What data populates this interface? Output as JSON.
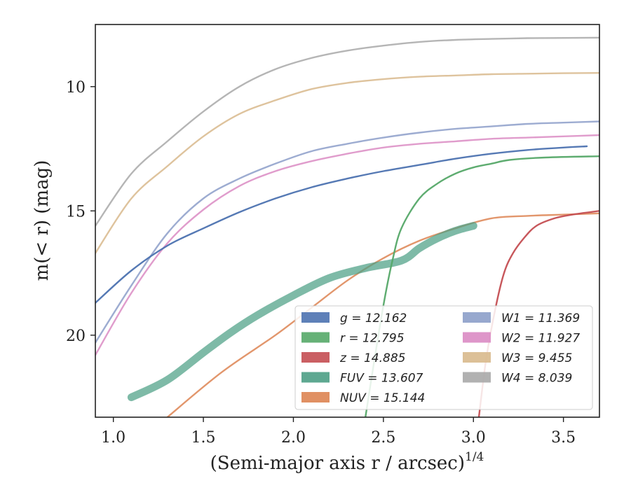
{
  "chart_data": {
    "type": "line",
    "xlabel": "(Semi-major axis r / arcsec)",
    "xlabel_sup": "1/4",
    "ylabel": "m(< r) (mag)",
    "xlim": [
      0.9,
      3.7
    ],
    "ylim": [
      23.3,
      7.5
    ],
    "y_inverted": true,
    "x_ticks": [
      "1.0",
      "1.5",
      "2.0",
      "2.5",
      "3.0",
      "3.5"
    ],
    "y_ticks": [
      "10",
      "15",
      "20"
    ],
    "grid": false,
    "legend_position": "lower-right",
    "series": [
      {
        "name": "g = 12.162",
        "label": "g",
        "value": "12.162",
        "color": "#4c72b0",
        "x": [
          0.9,
          1.1,
          1.3,
          1.5,
          1.7,
          1.9,
          2.1,
          2.3,
          2.5,
          2.7,
          2.9,
          3.1,
          3.3,
          3.5,
          3.63
        ],
        "y": [
          18.7,
          17.4,
          16.4,
          15.7,
          15.05,
          14.5,
          14.05,
          13.7,
          13.4,
          13.15,
          12.9,
          12.7,
          12.55,
          12.45,
          12.4
        ]
      },
      {
        "name": "r = 12.795",
        "label": "r",
        "value": "12.795",
        "color": "#55a868",
        "x": [
          2.4,
          2.45,
          2.5,
          2.55,
          2.6,
          2.7,
          2.8,
          2.9,
          3.0,
          3.1,
          3.2,
          3.4,
          3.7
        ],
        "y": [
          23.3,
          21.0,
          18.8,
          17.0,
          15.7,
          14.5,
          13.9,
          13.5,
          13.25,
          13.1,
          12.95,
          12.85,
          12.8
        ]
      },
      {
        "name": "z = 14.885",
        "label": "z",
        "value": "14.885",
        "color": "#c44e52",
        "x": [
          3.03,
          3.07,
          3.12,
          3.17,
          3.22,
          3.28,
          3.35,
          3.45,
          3.55,
          3.7
        ],
        "y": [
          23.3,
          21.0,
          19.0,
          17.5,
          16.7,
          16.1,
          15.6,
          15.3,
          15.15,
          15.0
        ]
      },
      {
        "name": "FUV = 13.607",
        "label": "FUV",
        "value": "13.607",
        "color": "#4c9f85",
        "x": [
          1.1,
          1.3,
          1.5,
          1.65,
          1.8,
          2.0,
          2.2,
          2.4,
          2.6,
          2.7,
          2.8,
          2.9,
          3.0
        ],
        "y": [
          22.5,
          21.8,
          20.7,
          19.9,
          19.2,
          18.4,
          17.7,
          17.3,
          17.0,
          16.5,
          16.1,
          15.8,
          15.6
        ]
      },
      {
        "name": "NUV = 15.144",
        "label": "NUV",
        "value": "15.144",
        "color": "#dd8452",
        "x": [
          1.3,
          1.6,
          1.9,
          2.1,
          2.3,
          2.5,
          2.7,
          2.9,
          3.1,
          3.3,
          3.5,
          3.7
        ],
        "y": [
          23.3,
          21.5,
          20.0,
          18.9,
          17.8,
          16.9,
          16.2,
          15.7,
          15.3,
          15.2,
          15.15,
          15.1
        ]
      },
      {
        "name": "W1 = 11.369",
        "label": "W1",
        "value": "11.369",
        "color": "#8c9ec9",
        "x": [
          0.9,
          1.1,
          1.3,
          1.5,
          1.7,
          1.9,
          2.1,
          2.3,
          2.5,
          2.7,
          2.9,
          3.1,
          3.3,
          3.5,
          3.7
        ],
        "y": [
          20.3,
          18.0,
          15.9,
          14.5,
          13.7,
          13.1,
          12.6,
          12.3,
          12.05,
          11.85,
          11.7,
          11.6,
          11.5,
          11.45,
          11.4
        ]
      },
      {
        "name": "W2 = 11.927",
        "label": "W2",
        "value": "11.927",
        "color": "#da8bc3",
        "x": [
          0.9,
          1.1,
          1.3,
          1.5,
          1.7,
          1.9,
          2.1,
          2.3,
          2.5,
          2.7,
          2.9,
          3.1,
          3.3,
          3.5,
          3.7
        ],
        "y": [
          20.8,
          18.3,
          16.3,
          14.95,
          14.0,
          13.4,
          13.0,
          12.7,
          12.45,
          12.3,
          12.2,
          12.1,
          12.05,
          12.0,
          11.95
        ]
      },
      {
        "name": "W3 = 9.455",
        "label": "W3",
        "value": "9.455",
        "color": "#d8b98c",
        "x": [
          0.9,
          1.1,
          1.3,
          1.5,
          1.7,
          1.9,
          2.1,
          2.3,
          2.5,
          2.7,
          2.9,
          3.1,
          3.3,
          3.5,
          3.7
        ],
        "y": [
          16.7,
          14.5,
          13.2,
          12.0,
          11.1,
          10.55,
          10.1,
          9.85,
          9.7,
          9.6,
          9.55,
          9.5,
          9.48,
          9.46,
          9.45
        ]
      },
      {
        "name": "W4 = 8.039",
        "label": "W4",
        "value": "8.039",
        "color": "#a8a8a8",
        "x": [
          0.9,
          1.1,
          1.3,
          1.5,
          1.7,
          1.9,
          2.1,
          2.3,
          2.5,
          2.7,
          2.9,
          3.1,
          3.3,
          3.5,
          3.7
        ],
        "y": [
          15.6,
          13.5,
          12.2,
          11.0,
          10.0,
          9.3,
          8.85,
          8.55,
          8.35,
          8.2,
          8.12,
          8.08,
          8.05,
          8.04,
          8.03
        ]
      }
    ]
  }
}
